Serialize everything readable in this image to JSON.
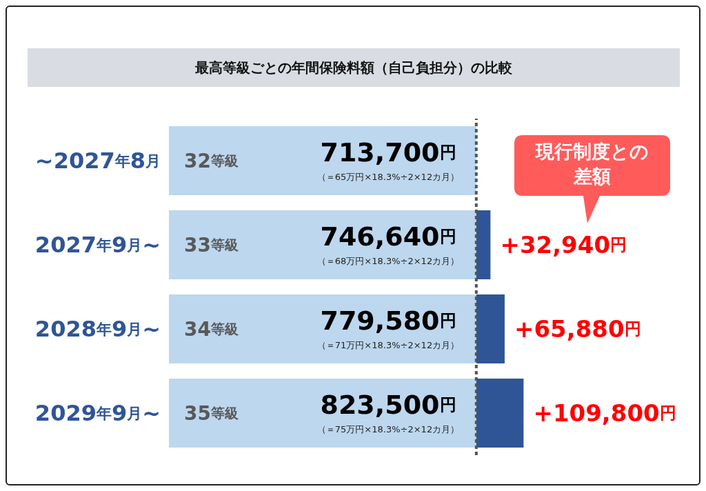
{
  "chart_data": {
    "type": "bar",
    "orientation": "horizontal",
    "stacked": true,
    "title": "最高等級ごとの年間保険料額（自己負担分）の比較",
    "categories": [
      "~2027年8月",
      "2027年9月~",
      "2028年9月~",
      "2029年9月~"
    ],
    "series": [
      {
        "color": "#bdd7ee",
        "values": [
          713700,
          713700,
          713700,
          713700
        ]
      },
      {
        "color": "#2f5597",
        "values": [
          null,
          32940,
          65880,
          109800
        ],
        "value_labels": [
          null,
          "+32,940円",
          "+65,880円",
          "+109,800円"
        ]
      }
    ],
    "totals": [
      "713,700円",
      "746,640円",
      "779,580円",
      "823,500円"
    ],
    "annotations": [
      "32等級",
      "33等級",
      "34等級",
      "35等級",
      "（＝65万円×18.3%÷2×12カ月）",
      "（＝68万円×18.3%÷2×12カ月）",
      "（＝71万円×18.3%÷2×12カ月）",
      "（＝75万円×18.3%÷2×12カ月）",
      "現行制度との差額"
    ],
    "ref_lines": [
      {
        "axis": "x",
        "value": 713700,
        "color": "#555555",
        "line_style": "dashed"
      }
    ],
    "tick_labels": "y",
    "grid": false,
    "legend": false
  }
}
